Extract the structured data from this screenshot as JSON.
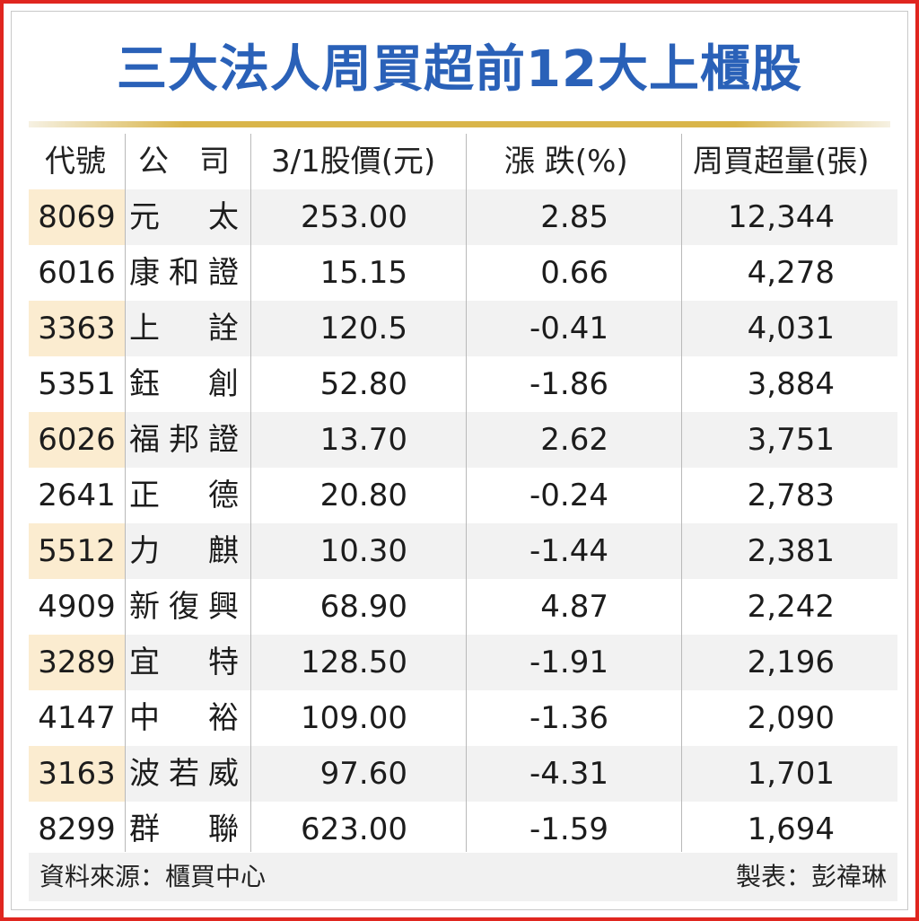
{
  "title": "三大法人周買超前12大上櫃股",
  "columns": {
    "code": "代號",
    "company": "公　司",
    "price": "3/1股價(元)",
    "change": "漲 跌(%)",
    "volume": "周買超量(張)"
  },
  "rows": [
    {
      "code": "8069",
      "name": "元太",
      "price": "253.00",
      "change": "2.85",
      "volume": "12,344"
    },
    {
      "code": "6016",
      "name": "康和證",
      "price": "15.15",
      "change": "0.66",
      "volume": "4,278"
    },
    {
      "code": "3363",
      "name": "上詮",
      "price": "120.5",
      "change": "-0.41",
      "volume": "4,031"
    },
    {
      "code": "5351",
      "name": "鈺創",
      "price": "52.80",
      "change": "-1.86",
      "volume": "3,884"
    },
    {
      "code": "6026",
      "name": "福邦證",
      "price": "13.70",
      "change": "2.62",
      "volume": "3,751"
    },
    {
      "code": "2641",
      "name": "正德",
      "price": "20.80",
      "change": "-0.24",
      "volume": "2,783"
    },
    {
      "code": "5512",
      "name": "力麒",
      "price": "10.30",
      "change": "-1.44",
      "volume": "2,381"
    },
    {
      "code": "4909",
      "name": "新復興",
      "price": "68.90",
      "change": "4.87",
      "volume": "2,242"
    },
    {
      "code": "3289",
      "name": "宜特",
      "price": "128.50",
      "change": "-1.91",
      "volume": "2,196"
    },
    {
      "code": "4147",
      "name": "中裕",
      "price": "109.00",
      "change": "-1.36",
      "volume": "2,090"
    },
    {
      "code": "3163",
      "name": "波若威",
      "price": "97.60",
      "change": "-4.31",
      "volume": "1,701"
    },
    {
      "code": "8299",
      "name": "群聯",
      "price": "623.00",
      "change": "-1.59",
      "volume": "1,694"
    }
  ],
  "footer": {
    "source": "資料來源：櫃買中心",
    "maker": "製表：彭禕琳"
  },
  "colors": {
    "title": "#2a61b8",
    "border": "#e0261f",
    "code_highlight": "#fbecd0",
    "row_shade": "#f2f2f2",
    "rule": "#d9b54a"
  }
}
